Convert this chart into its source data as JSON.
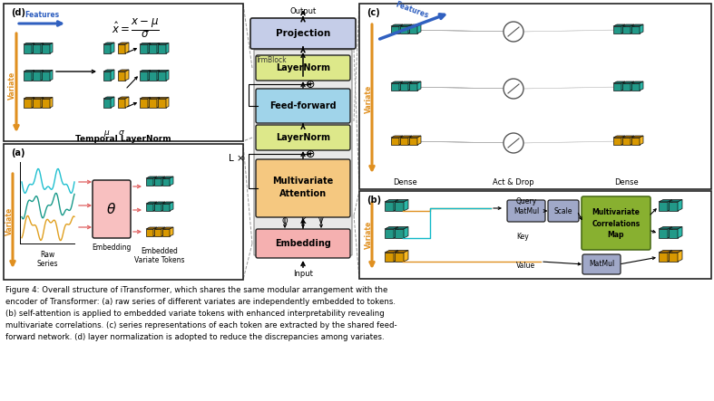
{
  "fig_width": 7.87,
  "fig_height": 4.43,
  "dpi": 100,
  "caption_lines": [
    "Figure 4: Overall structure of iTransformer, which shares the same modular arrangement with the",
    "encoder of Transformer: (a) raw series of different variates are independently embedded to tokens.",
    "(b) self-attention is applied to embedded variate tokens with enhanced interpretability revealing",
    "multivariate correlations. (c) series representations of each token are extracted by the shared feed-",
    "forward network. (d) layer normalization is adopted to reduce the discrepancies among variates."
  ],
  "colors": {
    "projection_box": "#c5cde8",
    "layernorm_box": "#dde88a",
    "feedforward_box": "#a0d4ea",
    "attention_box": "#f5c880",
    "embedding_box": "#f5b0b0",
    "trmblock_bg": "#e8e8e8",
    "teal_dark": "#1a7a70",
    "teal_mid": "#229988",
    "teal_light": "#2ab8a8",
    "orange_dark": "#b87800",
    "orange_mid": "#d89800",
    "orange_light": "#f8b820",
    "blue_arrow": "#3060c0",
    "orange_arrow": "#e09020",
    "cyan_line": "#10b8c8",
    "green_corr": "#88b030",
    "matmul_box": "#a0a8c8",
    "scale_box": "#a0a8c8",
    "panel_ec": "#222222",
    "gray_line": "#999999"
  }
}
